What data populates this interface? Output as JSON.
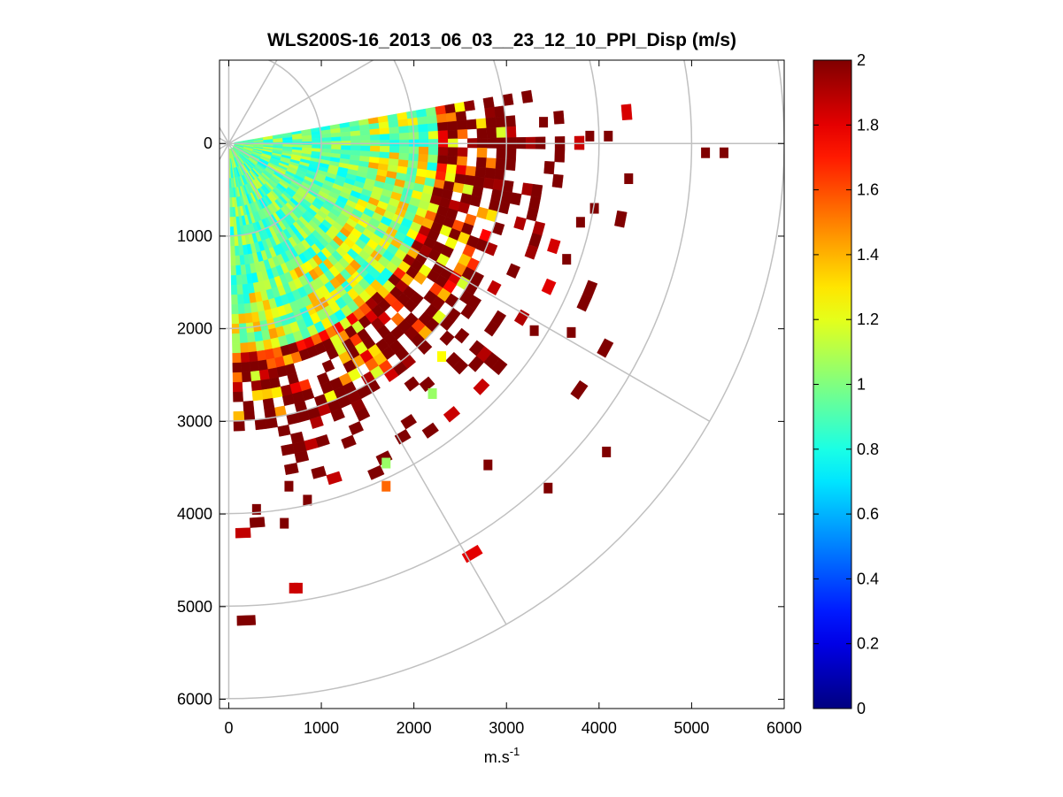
{
  "chart_data": {
    "type": "heatmap",
    "subtype": "ppi-polar-scan",
    "title": "WLS200S-16_2013_06_03__23_12_10_PPI_Disp (m/s)",
    "xlabel": "m.s",
    "xlabel_superscript": "-1",
    "ylabel": "",
    "xlim": [
      -100,
      6000
    ],
    "ylim": [
      6100,
      -900
    ],
    "y_reversed": true,
    "x_ticks": [
      "0",
      "1000",
      "2000",
      "3000",
      "4000",
      "5000",
      "6000"
    ],
    "x_tick_values": [
      0,
      1000,
      2000,
      3000,
      4000,
      5000,
      6000
    ],
    "y_ticks": [
      "0",
      "1000",
      "2000",
      "3000",
      "4000",
      "5000",
      "6000"
    ],
    "y_tick_values": [
      0,
      1000,
      2000,
      3000,
      4000,
      5000,
      6000
    ],
    "polar_grid": {
      "ring_radii": [
        1000,
        2000,
        3000,
        4000,
        5000,
        6000
      ],
      "spoke_angles_deg": [
        -90,
        -60,
        -30,
        0,
        30,
        60,
        90
      ],
      "color": "#c0c0c0"
    },
    "scan_sector": {
      "azimuth_start_deg": -10,
      "azimuth_end_deg": 88,
      "range_min": 0,
      "range_max_dense": 3000,
      "range_max_sparse": 5400,
      "gate_spacing": 105
    },
    "colorbar": {
      "colormap": "jet",
      "clim": [
        0,
        2
      ],
      "ticks": [
        "0",
        "0.2",
        "0.4",
        "0.6",
        "0.8",
        "1",
        "1.2",
        "1.4",
        "1.6",
        "1.8",
        "2"
      ],
      "tick_values": [
        0,
        0.2,
        0.4,
        0.6,
        0.8,
        1.0,
        1.2,
        1.4,
        1.6,
        1.8,
        2.0
      ]
    },
    "isolated_cells": [
      {
        "x": 5150,
        "y": 100,
        "value": 2.0
      },
      {
        "x": 5350,
        "y": 100,
        "value": 2.0
      },
      {
        "x": 3900,
        "y": -80,
        "value": 2.0
      },
      {
        "x": 4100,
        "y": -80,
        "value": 2.0
      },
      {
        "x": 4320,
        "y": 380,
        "value": 2.0
      },
      {
        "x": 4080,
        "y": 3330,
        "value": 2.0
      },
      {
        "x": 3450,
        "y": 3720,
        "value": 2.0
      },
      {
        "x": 2800,
        "y": 3470,
        "value": 2.0
      },
      {
        "x": 3700,
        "y": 2040,
        "value": 2.0
      },
      {
        "x": 3300,
        "y": 2020,
        "value": 2.0
      },
      {
        "x": 1700,
        "y": 3700,
        "value": 1.55
      },
      {
        "x": 1700,
        "y": 3450,
        "value": 1.05
      },
      {
        "x": 2300,
        "y": 2300,
        "value": 1.25
      },
      {
        "x": 2200,
        "y": 2700,
        "value": 1.05
      },
      {
        "x": 700,
        "y": 4800,
        "value": 1.85
      },
      {
        "x": 750,
        "y": 4800,
        "value": 1.85
      },
      {
        "x": 600,
        "y": 4100,
        "value": 2.0
      },
      {
        "x": 300,
        "y": 3950,
        "value": 2.0
      },
      {
        "x": 850,
        "y": 3850,
        "value": 2.0
      },
      {
        "x": 650,
        "y": 3700,
        "value": 2.0
      },
      {
        "x": 3400,
        "y": -230,
        "value": 2.0
      },
      {
        "x": 3650,
        "y": 1250,
        "value": 2.0
      },
      {
        "x": 3800,
        "y": 850,
        "value": 2.0
      },
      {
        "x": 3950,
        "y": 700,
        "value": 2.0
      }
    ],
    "value_distribution": [
      {
        "range_from": 0,
        "range_to": 1500,
        "typical_value": 0.95,
        "spread": 0.22
      },
      {
        "range_from": 1500,
        "range_to": 2200,
        "typical_value": 1.1,
        "spread": 0.35
      },
      {
        "range_from": 2200,
        "range_to": 3000,
        "typical_value": 1.6,
        "spread": 0.45
      },
      {
        "range_from": 3000,
        "range_to": 4200,
        "typical_value": 1.95,
        "spread": 0.15
      }
    ]
  }
}
